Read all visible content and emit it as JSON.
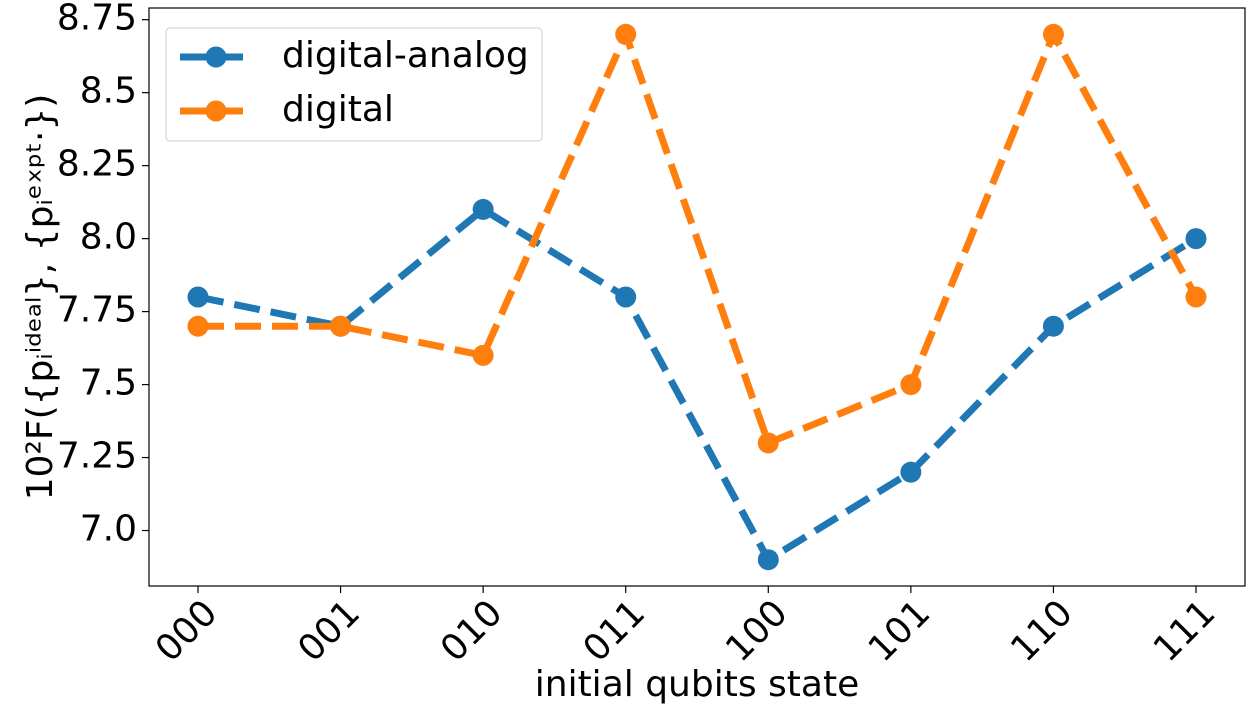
{
  "chart_data": {
    "type": "line",
    "x_label": "initial qubits state",
    "y_label": "10²F({pᵢⁱᵈᵉᵃˡ}, {pᵢᵉˣᵖᵗ·})",
    "categories": [
      "000",
      "001",
      "010",
      "011",
      "100",
      "101",
      "110",
      "111"
    ],
    "series": [
      {
        "name": "digital-analog",
        "color": "#1f77b4",
        "values": [
          7.8,
          7.7,
          8.1,
          7.8,
          6.9,
          7.2,
          7.7,
          8.0
        ]
      },
      {
        "name": "digital",
        "color": "#ff7f0e",
        "values": [
          7.7,
          7.7,
          7.6,
          8.7,
          7.3,
          7.5,
          8.7,
          7.8
        ]
      }
    ],
    "ylim": [
      6.81,
      8.79
    ],
    "yticks": [
      {
        "value": 7,
        "label": "7.0"
      },
      7.25,
      7.5,
      7.75,
      {
        "value": 8,
        "label": "8.0"
      },
      8.25,
      8.5,
      8.75
    ],
    "legend": "upper left",
    "grid": false
  }
}
